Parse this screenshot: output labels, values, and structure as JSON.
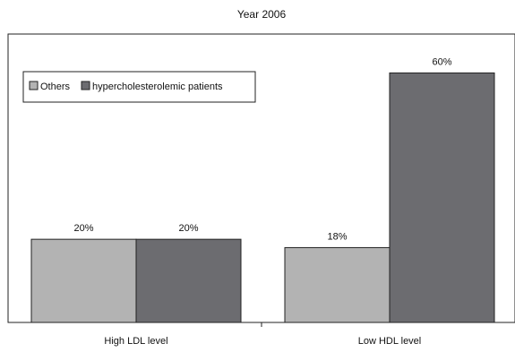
{
  "chart_data": {
    "type": "bar",
    "title": "Year 2006",
    "xlabel": "",
    "ylabel": "",
    "categories": [
      "High LDL level",
      "Low HDL level"
    ],
    "series": [
      {
        "name": "Others",
        "values": [
          20,
          18
        ],
        "labels": [
          "20%",
          "18%"
        ],
        "color": "#b3b3b3"
      },
      {
        "name": "hypercholesterolemic patients",
        "values": [
          20,
          60
        ],
        "labels": [
          "20%",
          "60%"
        ],
        "color": "#6c6c70"
      }
    ],
    "ylim": [
      0,
      70
    ],
    "grid": false,
    "legend_position": "top-left"
  }
}
